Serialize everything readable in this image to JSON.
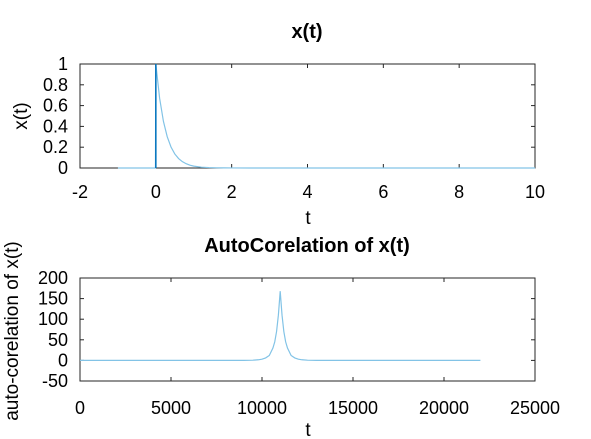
{
  "chart_data": [
    {
      "type": "line",
      "title": "x(t)",
      "xlabel": "t",
      "ylabel": "x(t)",
      "xlim": [
        -2,
        10
      ],
      "ylim": [
        0,
        1
      ],
      "xticks": [
        -2,
        0,
        2,
        4,
        6,
        8,
        10
      ],
      "yticks": [
        0,
        0.2,
        0.4,
        0.6,
        0.8,
        1
      ],
      "grid": false,
      "series": [
        {
          "color": "#82c3e6",
          "x": [
            -1,
            -0.5,
            -0.01,
            0,
            0.1,
            0.2,
            0.3,
            0.4,
            0.5,
            0.6,
            0.7,
            0.8,
            0.9,
            1.0,
            1.2,
            1.4,
            1.6,
            1.8,
            2.0,
            2.5,
            3,
            4,
            5,
            6,
            7,
            8,
            9,
            10
          ],
          "y": [
            0,
            0,
            0,
            1,
            0.67,
            0.449,
            0.301,
            0.202,
            0.135,
            0.091,
            0.061,
            0.041,
            0.027,
            0.018,
            0.008,
            0.004,
            0.002,
            0.001,
            0.0005,
            0,
            0,
            0,
            0,
            0,
            0,
            0,
            0,
            0
          ]
        }
      ],
      "stem": {
        "x": 0,
        "y": 1,
        "color": "#0072bd"
      }
    },
    {
      "type": "line",
      "title": "AutoCorelation of x(t)",
      "xlabel": "t",
      "ylabel": "auto-corelation of x(t)",
      "xlim": [
        0,
        25000
      ],
      "ylim": [
        -50,
        200
      ],
      "xticks": [
        0,
        5000,
        10000,
        15000,
        20000,
        25000
      ],
      "yticks": [
        -50,
        0,
        50,
        100,
        150,
        200
      ],
      "grid": false,
      "series": [
        {
          "color": "#82c3e6",
          "x": [
            0,
            9000,
            9500,
            9800,
            10000,
            10200,
            10400,
            10600,
            10700,
            10800,
            10900,
            11000,
            11100,
            11200,
            11300,
            11400,
            11600,
            11800,
            12000,
            12200,
            12500,
            13000,
            22000
          ],
          "y": [
            0,
            0,
            0.5,
            1.5,
            3,
            6,
            12,
            30,
            45,
            70,
            110,
            168,
            110,
            70,
            45,
            30,
            12,
            6,
            3,
            1.5,
            0.5,
            0,
            0
          ]
        }
      ]
    }
  ]
}
